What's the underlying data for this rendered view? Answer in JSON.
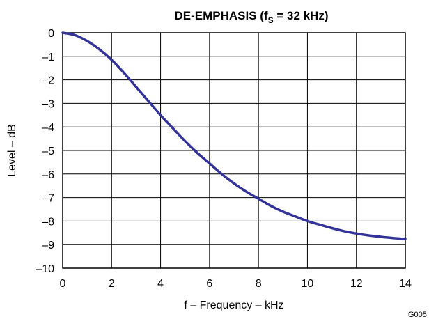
{
  "chart_data": {
    "type": "line",
    "title": "DE-EMPHASIS (f",
    "title_subscript": "S",
    "title_suffix": " = 32 kHz)",
    "xlabel": "f – Frequency – kHz",
    "ylabel": "Level – dB",
    "figure_code": "G005",
    "xlim": [
      0,
      14
    ],
    "ylim": [
      -10,
      0
    ],
    "x_ticks": [
      0,
      2,
      4,
      6,
      8,
      10,
      12,
      14
    ],
    "x_tick_labels": [
      "0",
      "2",
      "4",
      "6",
      "8",
      "10",
      "12",
      "14"
    ],
    "y_ticks": [
      0,
      -1,
      -2,
      -3,
      -4,
      -5,
      -6,
      -7,
      -8,
      -9,
      -10
    ],
    "y_tick_labels": [
      "0",
      "–1",
      "–2",
      "–3",
      "–4",
      "–5",
      "–6",
      "–7",
      "–8",
      "–9",
      "–10"
    ],
    "grid": true,
    "line_color": "#333399",
    "series": [
      {
        "x": [
          0,
          0.5,
          1,
          1.5,
          2,
          2.5,
          3,
          3.5,
          4,
          4.5,
          5,
          5.5,
          6,
          6.5,
          7,
          7.5,
          8,
          8.5,
          9,
          9.5,
          10,
          10.5,
          11,
          11.5,
          12,
          12.5,
          13,
          13.5,
          14
        ],
        "y": [
          0,
          -0.1,
          -0.35,
          -0.7,
          -1.15,
          -1.7,
          -2.3,
          -2.9,
          -3.5,
          -4.05,
          -4.6,
          -5.1,
          -5.55,
          -6.0,
          -6.4,
          -6.75,
          -7.05,
          -7.35,
          -7.6,
          -7.8,
          -8.0,
          -8.15,
          -8.3,
          -8.43,
          -8.53,
          -8.61,
          -8.67,
          -8.72,
          -8.76
        ]
      }
    ]
  }
}
